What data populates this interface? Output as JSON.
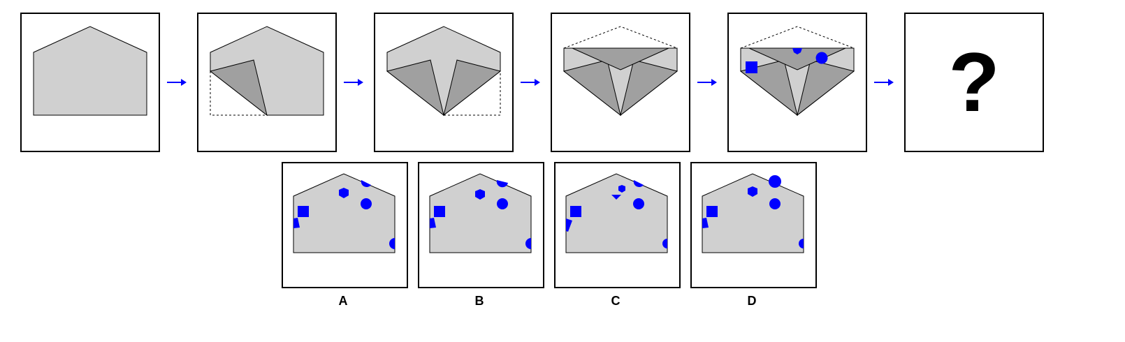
{
  "sequence": {
    "question_mark": "?"
  },
  "options": [
    {
      "label": "A"
    },
    {
      "label": "B"
    },
    {
      "label": "C"
    },
    {
      "label": "D"
    }
  ],
  "colors": {
    "paper": "#d0d0d0",
    "fold": "#a0a0a0",
    "marker": "#0000ff",
    "arrow": "#0000ff",
    "outline": "#000000"
  }
}
